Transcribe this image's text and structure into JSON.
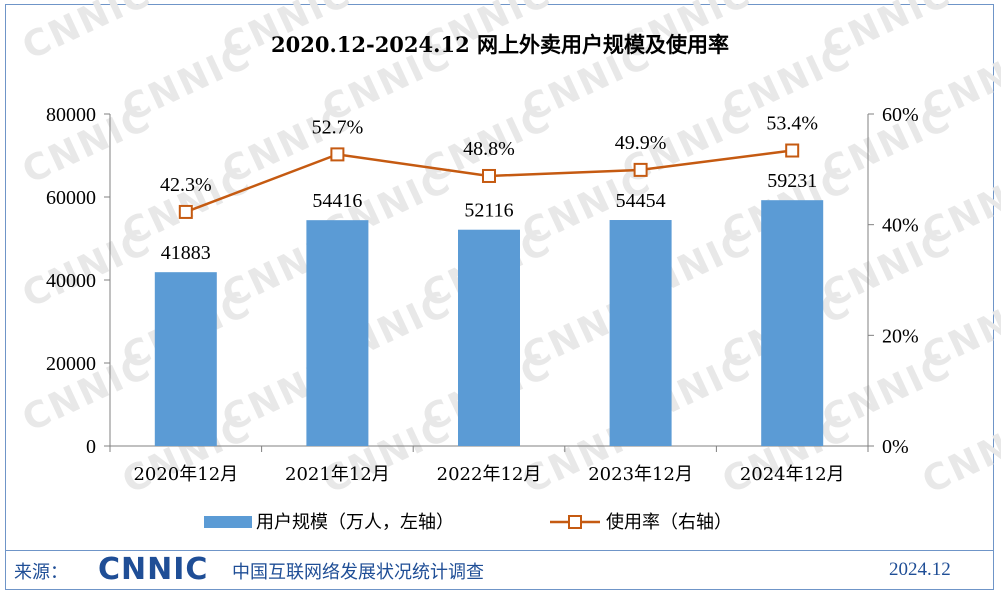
{
  "chart_data": {
    "type": "bar",
    "title": "2020.12-2024.12 网上外卖用户规模及使用率",
    "categories": [
      "2020年12月",
      "2021年12月",
      "2022年12月",
      "2023年12月",
      "2024年12月"
    ],
    "series": [
      {
        "name": "用户规模（万人，左轴）",
        "type": "bar",
        "axis": "left",
        "values": [
          41883,
          54416,
          52116,
          54454,
          59231
        ],
        "labels": [
          "41883",
          "54416",
          "52116",
          "54454",
          "59231"
        ],
        "color": "#5b9bd5"
      },
      {
        "name": "使用率（右轴）",
        "type": "line",
        "axis": "right",
        "values": [
          42.3,
          52.7,
          48.8,
          49.9,
          53.4
        ],
        "labels": [
          "42.3%",
          "52.7%",
          "48.8%",
          "49.9%",
          "53.4%"
        ],
        "color": "#c55a11"
      }
    ],
    "y_left": {
      "min": 0,
      "max": 80000,
      "ticks": [
        0,
        20000,
        40000,
        60000,
        80000
      ],
      "tick_labels": [
        "0",
        "20000",
        "40000",
        "60000",
        "80000"
      ]
    },
    "y_right": {
      "min": 0,
      "max": 60,
      "ticks": [
        0,
        20,
        40,
        60
      ],
      "tick_labels": [
        "0%",
        "20%",
        "40%",
        "60%"
      ]
    },
    "grid": false,
    "legend_position": "bottom"
  },
  "watermark": "CNNIC",
  "footer": {
    "source_label": "来源：",
    "logo": "CNNIC",
    "organization": "中国互联网络发展状况统计调查",
    "date": "2024.12",
    "color": "#1f4e96"
  }
}
